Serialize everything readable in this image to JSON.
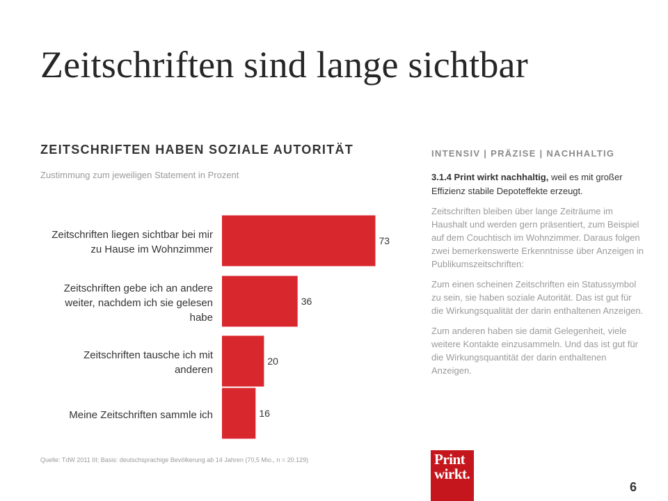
{
  "slide": {
    "title": "Zeitschriften sind lange sichtbar",
    "page_number": "6",
    "source": "Quelle: TdW 2011 III; Basis: deutschsprachige Bevölkerung ab 14 Jahren (70,5 Mio., n = 20.129)"
  },
  "chart_data": {
    "type": "bar",
    "orientation": "horizontal",
    "title": "ZEITSCHRIFTEN HABEN SOZIALE AUTORITÄT",
    "subtitle": "Zustimmung zum jeweiligen Statement in Prozent",
    "categories": [
      [
        "Zeitschriften liegen sichtbar bei mir",
        "zu Hause im Wohnzimmer"
      ],
      [
        "Zeitschriften gebe ich an andere",
        "weiter, nachdem ich sie gelesen",
        "habe"
      ],
      [
        "Zeitschriften tausche ich mit",
        "anderen"
      ],
      [
        "Meine Zeitschriften sammle ich"
      ]
    ],
    "values": [
      73,
      36,
      20,
      16
    ],
    "xlim": [
      0,
      100
    ],
    "grid": false,
    "legend": "none",
    "bar_color": "#d9272e"
  },
  "sidebar": {
    "kicker": "INTENSIV | PRÄZISE | NACHHALTIG",
    "lead_bold": "3.1.4 Print wirkt nachhaltig,",
    "lead_rest": " weil es mit großer Effizienz stabile Depoteffekte erzeugt.",
    "paragraphs": [
      "Zeitschriften bleiben über lange Zeiträume im Haushalt und werden gern präsentiert, zum Beispiel auf dem Couchtisch im Wohnzimmer. Daraus folgen zwei bemerkenswerte Erkenntnisse über Anzeigen in Publikumszeitschriften:",
      "Zum einen scheinen Zeitschriften ein Statussymbol zu sein, sie haben soziale Autorität. Das ist gut für die Wirkungsqualität der darin enthaltenen Anzeigen.",
      "Zum anderen haben sie damit Gelegenheit, viele weitere Kontakte einzusammeln. Und das ist gut für die Wirkungsquantität der darin enthaltenen Anzeigen."
    ]
  },
  "logo": {
    "line1": "Print",
    "line2": "wirkt."
  },
  "colors": {
    "accent": "#d9272e",
    "logo_bg": "#c4161c",
    "text": "#333333",
    "muted": "#9a9a9a"
  }
}
